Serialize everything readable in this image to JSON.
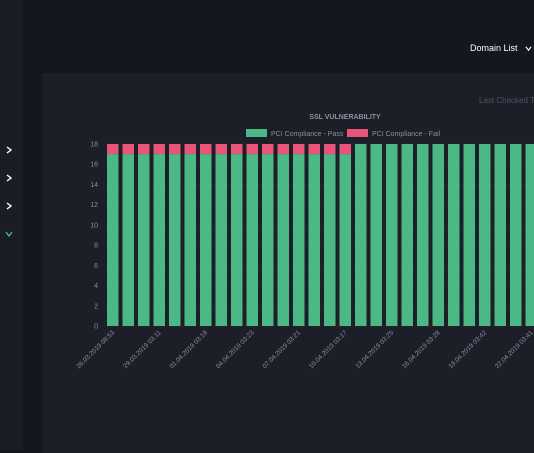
{
  "header": {
    "domain_list_label": "Domain List",
    "last_checked_label": "Last Checked T"
  },
  "sidebar": {
    "chevrons": [
      "chevron-right-icon",
      "chevron-right-icon",
      "chevron-right-icon",
      "chevron-down-icon"
    ]
  },
  "colors": {
    "pass": "#4bb886",
    "fail": "#e9547a",
    "accent_active": "#46b884",
    "background": "#14171f",
    "panel": "#1c1f28"
  },
  "chart_data": {
    "type": "bar",
    "stacked": true,
    "title": "SSL VULNERABILITY",
    "ylim": [
      0,
      18
    ],
    "yticks": [
      0,
      2,
      4,
      6,
      8,
      10,
      12,
      14,
      16,
      18
    ],
    "grid": true,
    "legend_position": "top-center",
    "xtick_labels": [
      "26.03.2019 08:53",
      "29.03.2019 03:11",
      "01.04.2019 03:18",
      "04.04.2019 03:23",
      "07.04.2019 03:21",
      "10.04.2019 03:17",
      "13.04.2019 03:25",
      "16.04.2019 03:28",
      "19.04.2019 03:42",
      "22.04.2019 03:41"
    ],
    "series": [
      {
        "name": "PCI Compliance - Pass",
        "color": "#4bb886",
        "values": [
          17,
          17,
          17,
          17,
          17,
          17,
          17,
          17,
          17,
          17,
          17,
          17,
          17,
          17,
          17,
          17,
          18,
          18,
          18,
          18,
          18,
          18,
          18,
          18,
          18,
          18,
          18,
          18
        ]
      },
      {
        "name": "PCI Compliance - Fail",
        "color": "#e9547a",
        "values": [
          1,
          1,
          1,
          1,
          1,
          1,
          1,
          1,
          1,
          1,
          1,
          1,
          1,
          1,
          1,
          1,
          0,
          0,
          0,
          0,
          0,
          0,
          0,
          0,
          0,
          0,
          0,
          0
        ]
      }
    ]
  }
}
